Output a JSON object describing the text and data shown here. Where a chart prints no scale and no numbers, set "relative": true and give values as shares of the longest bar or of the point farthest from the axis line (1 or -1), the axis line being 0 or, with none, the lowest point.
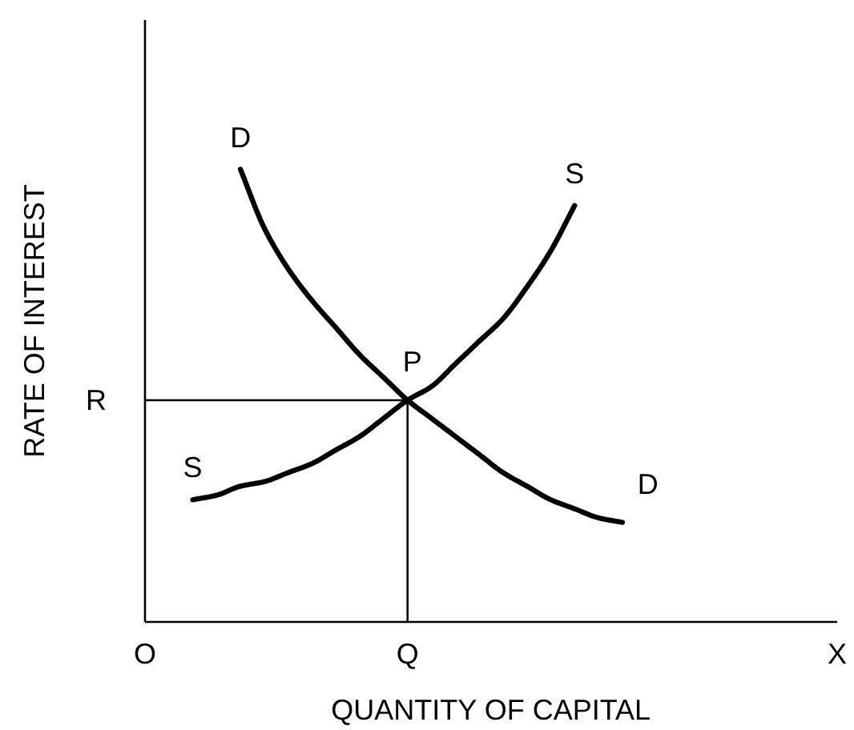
{
  "chart_data": {
    "type": "line",
    "relative": true,
    "xlabel": "QUANTITY OF CAPITAL",
    "ylabel": "RATE OF INTEREST",
    "categories": [
      "O",
      null,
      null,
      null,
      null,
      null,
      null,
      null,
      null,
      null,
      null,
      "Q",
      null,
      null,
      null,
      null,
      null,
      null,
      null,
      null,
      null,
      null,
      null,
      null,
      null,
      null,
      null,
      null,
      null,
      "X"
    ],
    "series": [
      {
        "name": "D",
        "color": "#000000",
        "values": [
          null,
          null,
          null,
          null,
          1,
          0.87,
          0.78,
          0.71,
          0.65,
          0.59,
          0.54,
          0.49,
          0.45,
          0.41,
          0.37,
          0.33,
          0.3,
          0.27,
          0.25,
          0.23,
          0.22,
          null,
          null,
          null,
          null,
          null,
          null,
          null,
          null,
          null
        ]
      },
      {
        "name": "S",
        "color": "#000000",
        "values": [
          null,
          null,
          0.27,
          0.28,
          0.3,
          0.31,
          0.33,
          0.35,
          0.38,
          0.41,
          0.45,
          0.49,
          0.52,
          0.57,
          0.62,
          0.67,
          0.74,
          0.82,
          0.92,
          null,
          null,
          null,
          null,
          null,
          null,
          null,
          null,
          null,
          null,
          null
        ]
      }
    ],
    "ref_lines": [
      {
        "axis": "y",
        "value": 0.49,
        "label": "R",
        "color": "#000000"
      },
      {
        "axis": "x",
        "value": "Q",
        "color": "#000000"
      }
    ],
    "annotations": [
      {
        "text": "P",
        "x": "Q",
        "y": 0.49
      }
    ]
  }
}
